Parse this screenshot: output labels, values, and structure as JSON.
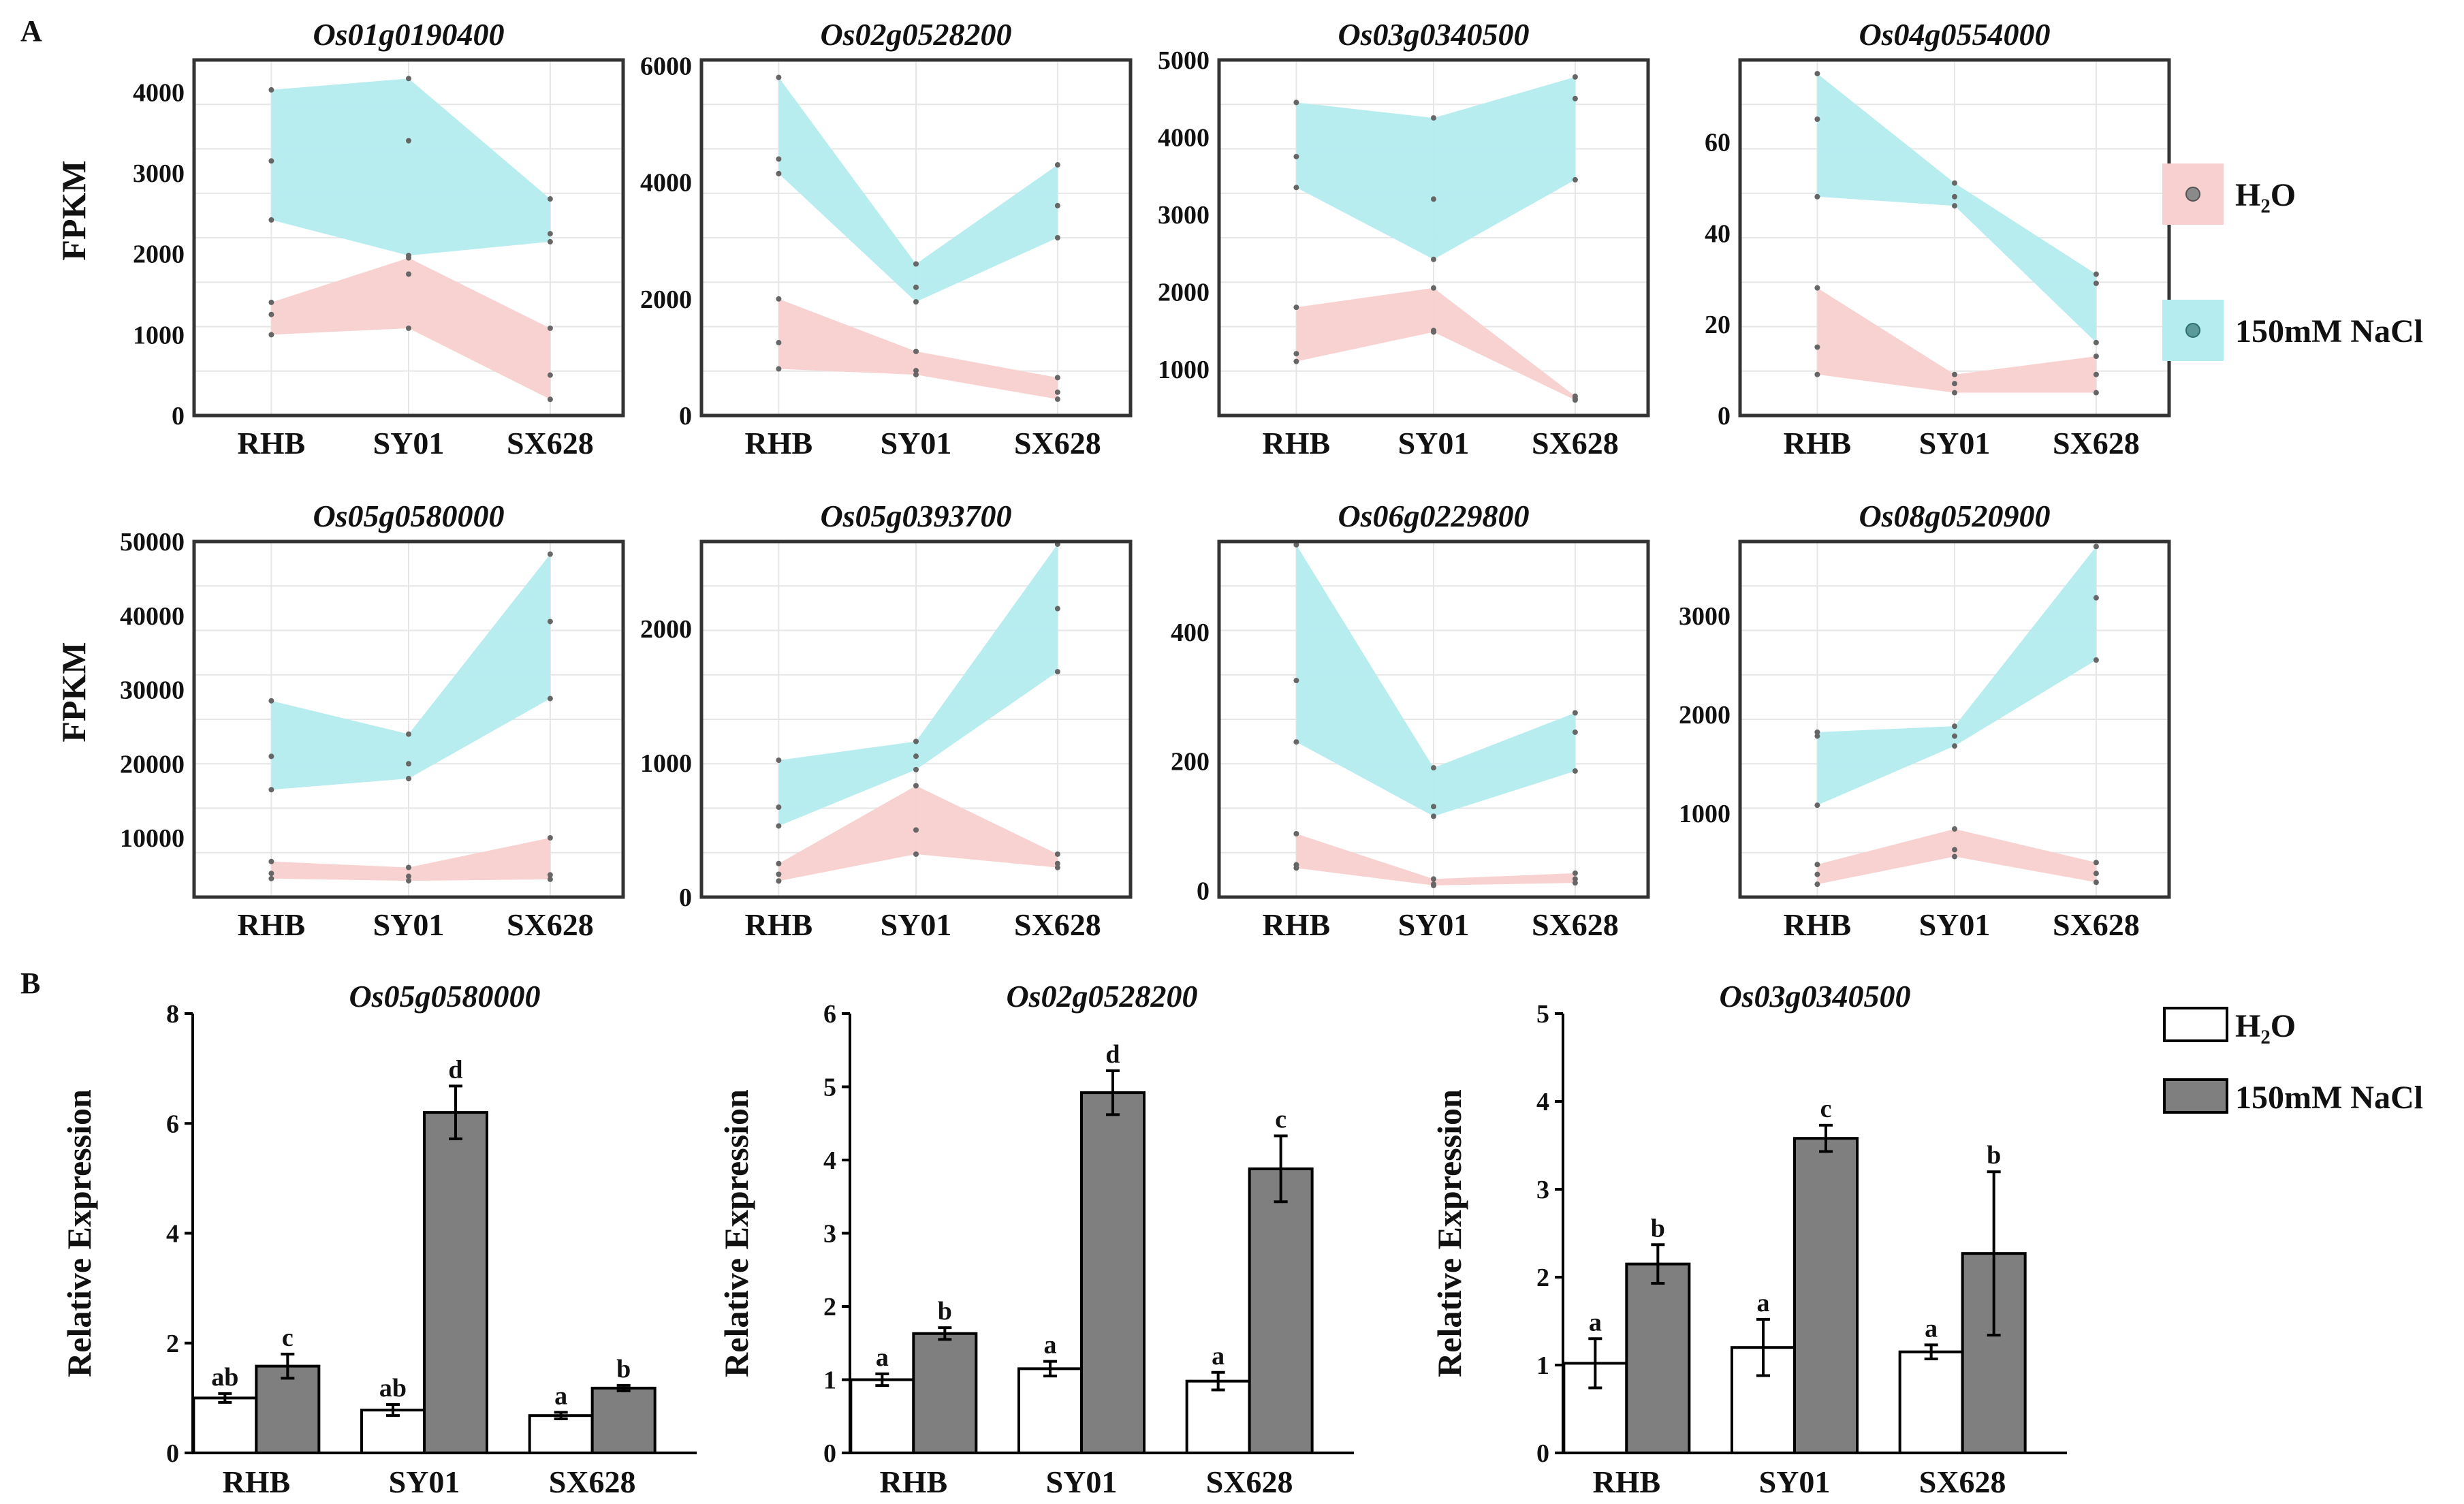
{
  "figure": {
    "panel_a_label": "A",
    "panel_b_label": "B",
    "fpkm_label": "FPKM",
    "rel_label": "Relative Expression"
  },
  "legend_a": [
    {
      "label": "H₂O",
      "color": "#f8d0cf"
    },
    {
      "label": "150mM NaCl",
      "color": "#b4ecef"
    }
  ],
  "legend_b": [
    {
      "label": "H₂O",
      "color": "#ffffff"
    },
    {
      "label": "150mM NaCl",
      "color": "#7f7f7f"
    }
  ],
  "colors": {
    "h2o_band": "#f8d0cf",
    "nacl_band": "#b4ecef",
    "nacl_bar": "#7f7f7f",
    "h2o_bar": "#ffffff",
    "grid": "#e6e6e6"
  },
  "chart_data": [
    {
      "type": "area",
      "title": "Os01g0190400",
      "categories": [
        "RHB",
        "SY01",
        "SX628"
      ],
      "ylabel": "FPKM",
      "ylim": [
        0,
        4400
      ],
      "yticks": [
        0,
        1000,
        2000,
        3000,
        4000
      ],
      "series": [
        {
          "name": "H₂O",
          "min": [
            1000,
            1080,
            200
          ],
          "mid": [
            1250,
            1750,
            500
          ],
          "max": [
            1400,
            1950,
            1080
          ]
        },
        {
          "name": "150mM NaCl",
          "min": [
            2420,
            1980,
            2150
          ],
          "mid": [
            3150,
            3400,
            2250
          ],
          "max": [
            4030,
            4170,
            2680
          ]
        }
      ]
    },
    {
      "type": "area",
      "title": "Os02g0528200",
      "categories": [
        "RHB",
        "SY01",
        "SX628"
      ],
      "ylabel": "",
      "ylim": [
        0,
        6100
      ],
      "yticks": [
        0,
        2000,
        4000,
        6000
      ],
      "series": [
        {
          "name": "H₂O",
          "min": [
            800,
            700,
            280
          ],
          "mid": [
            1250,
            770,
            400
          ],
          "max": [
            2000,
            1100,
            650
          ]
        },
        {
          "name": "150mM NaCl",
          "min": [
            4150,
            1950,
            3050
          ],
          "mid": [
            4400,
            2200,
            3600
          ],
          "max": [
            5800,
            2600,
            4300
          ]
        }
      ]
    },
    {
      "type": "area",
      "title": "Os03g0340500",
      "categories": [
        "RHB",
        "SY01",
        "SX628"
      ],
      "ylabel": "",
      "ylim": [
        400,
        5000
      ],
      "yticks": [
        1000,
        2000,
        3000,
        4000,
        5000
      ],
      "series": [
        {
          "name": "H₂O",
          "min": [
            1100,
            1480,
            600
          ],
          "mid": [
            1200,
            1500,
            620
          ],
          "max": [
            1800,
            2050,
            650
          ]
        },
        {
          "name": "150mM NaCl",
          "min": [
            3350,
            2420,
            3450
          ],
          "mid": [
            3750,
            3200,
            4500
          ],
          "max": [
            4450,
            4250,
            4780
          ]
        }
      ]
    },
    {
      "type": "area",
      "title": "Os04g0554000",
      "categories": [
        "RHB",
        "SY01",
        "SX628"
      ],
      "ylabel": "",
      "ylim": [
        0,
        78
      ],
      "yticks": [
        0,
        20,
        40,
        60
      ],
      "series": [
        {
          "name": "H₂O",
          "min": [
            9,
            5,
            5
          ],
          "mid": [
            15,
            7,
            9
          ],
          "max": [
            28,
            9,
            13
          ]
        },
        {
          "name": "150mM NaCl",
          "min": [
            48,
            46,
            16
          ],
          "mid": [
            65,
            48,
            29
          ],
          "max": [
            75,
            51,
            31
          ]
        }
      ]
    },
    {
      "type": "area",
      "title": "Os05g0580000",
      "categories": [
        "RHB",
        "SY01",
        "SX628"
      ],
      "ylabel": "FPKM",
      "ylim": [
        2000,
        50000
      ],
      "yticks": [
        10000,
        20000,
        30000,
        40000,
        50000
      ],
      "series": [
        {
          "name": "H₂O",
          "min": [
            4500,
            4200,
            4400
          ],
          "mid": [
            5200,
            4800,
            5000
          ],
          "max": [
            6800,
            6000,
            10000
          ]
        },
        {
          "name": "150mM NaCl",
          "min": [
            16500,
            18000,
            28800
          ],
          "mid": [
            21000,
            20000,
            39200
          ],
          "max": [
            28500,
            24000,
            48300
          ]
        }
      ]
    },
    {
      "type": "area",
      "title": "Os05g0393700",
      "categories": [
        "RHB",
        "SY01",
        "SX628"
      ],
      "ylabel": "",
      "ylim": [
        0,
        2650
      ],
      "yticks": [
        0,
        1000,
        2000
      ],
      "series": [
        {
          "name": "H₂O",
          "min": [
            120,
            320,
            220
          ],
          "mid": [
            170,
            500,
            250
          ],
          "max": [
            250,
            830,
            320
          ]
        },
        {
          "name": "150mM NaCl",
          "min": [
            530,
            950,
            1680
          ],
          "mid": [
            670,
            1050,
            2150
          ],
          "max": [
            1020,
            1160,
            2630
          ]
        }
      ]
    },
    {
      "type": "area",
      "title": "Os06g0229800",
      "categories": [
        "RHB",
        "SY01",
        "SX628"
      ],
      "ylabel": "",
      "ylim": [
        -10,
        540
      ],
      "yticks": [
        0,
        200,
        400
      ],
      "series": [
        {
          "name": "H₂O",
          "min": [
            35,
            8,
            12
          ],
          "mid": [
            40,
            10,
            18
          ],
          "max": [
            88,
            18,
            27
          ]
        },
        {
          "name": "150mM NaCl",
          "min": [
            230,
            115,
            185
          ],
          "mid": [
            325,
            130,
            245
          ],
          "max": [
            535,
            190,
            275
          ]
        }
      ]
    },
    {
      "type": "area",
      "title": "Os08g0520900",
      "categories": [
        "RHB",
        "SY01",
        "SX628"
      ],
      "ylabel": "",
      "ylim": [
        150,
        3750
      ],
      "yticks": [
        1000,
        2000,
        3000
      ],
      "series": [
        {
          "name": "H₂O",
          "min": [
            280,
            560,
            300
          ],
          "mid": [
            380,
            630,
            390
          ],
          "max": [
            480,
            840,
            500
          ]
        },
        {
          "name": "150mM NaCl",
          "min": [
            1080,
            1680,
            2550
          ],
          "mid": [
            1780,
            1780,
            3180
          ],
          "max": [
            1820,
            1880,
            3700
          ]
        }
      ]
    },
    {
      "type": "bar",
      "title": "Os05g0580000",
      "categories": [
        "RHB",
        "SY01",
        "SX628"
      ],
      "ylabel": "Relative Expression",
      "ylim": [
        0,
        8
      ],
      "yticks": [
        0,
        2,
        4,
        6,
        8
      ],
      "series": [
        {
          "name": "H₂O",
          "values": [
            1.0,
            0.78,
            0.68
          ],
          "errors": [
            0.08,
            0.1,
            0.06
          ],
          "labels": [
            "ab",
            "ab",
            "a"
          ]
        },
        {
          "name": "150mM NaCl",
          "values": [
            1.58,
            6.2,
            1.18
          ],
          "errors": [
            0.22,
            0.48,
            0.05
          ],
          "labels": [
            "c",
            "d",
            "b"
          ]
        }
      ]
    },
    {
      "type": "bar",
      "title": "Os02g0528200",
      "categories": [
        "RHB",
        "SY01",
        "SX628"
      ],
      "ylabel": "Relative Expression",
      "ylim": [
        0,
        6
      ],
      "yticks": [
        0,
        1,
        2,
        3,
        4,
        5,
        6
      ],
      "series": [
        {
          "name": "H₂O",
          "values": [
            1.0,
            1.15,
            0.98
          ],
          "errors": [
            0.08,
            0.1,
            0.12
          ],
          "labels": [
            "a",
            "a",
            "a"
          ]
        },
        {
          "name": "150mM NaCl",
          "values": [
            1.63,
            4.92,
            3.88
          ],
          "errors": [
            0.08,
            0.3,
            0.45
          ],
          "labels": [
            "b",
            "d",
            "c"
          ]
        }
      ]
    },
    {
      "type": "bar",
      "title": "Os03g0340500",
      "categories": [
        "RHB",
        "SY01",
        "SX628"
      ],
      "ylabel": "Relative Expression",
      "ylim": [
        0,
        5
      ],
      "yticks": [
        0,
        1,
        2,
        3,
        4,
        5
      ],
      "series": [
        {
          "name": "H₂O",
          "values": [
            1.02,
            1.2,
            1.15
          ],
          "errors": [
            0.28,
            0.32,
            0.08
          ],
          "labels": [
            "a",
            "a",
            "a"
          ]
        },
        {
          "name": "150mM NaCl",
          "values": [
            2.15,
            3.58,
            2.27
          ],
          "errors": [
            0.22,
            0.15,
            0.93
          ],
          "labels": [
            "b",
            "c",
            "b"
          ]
        }
      ]
    }
  ]
}
